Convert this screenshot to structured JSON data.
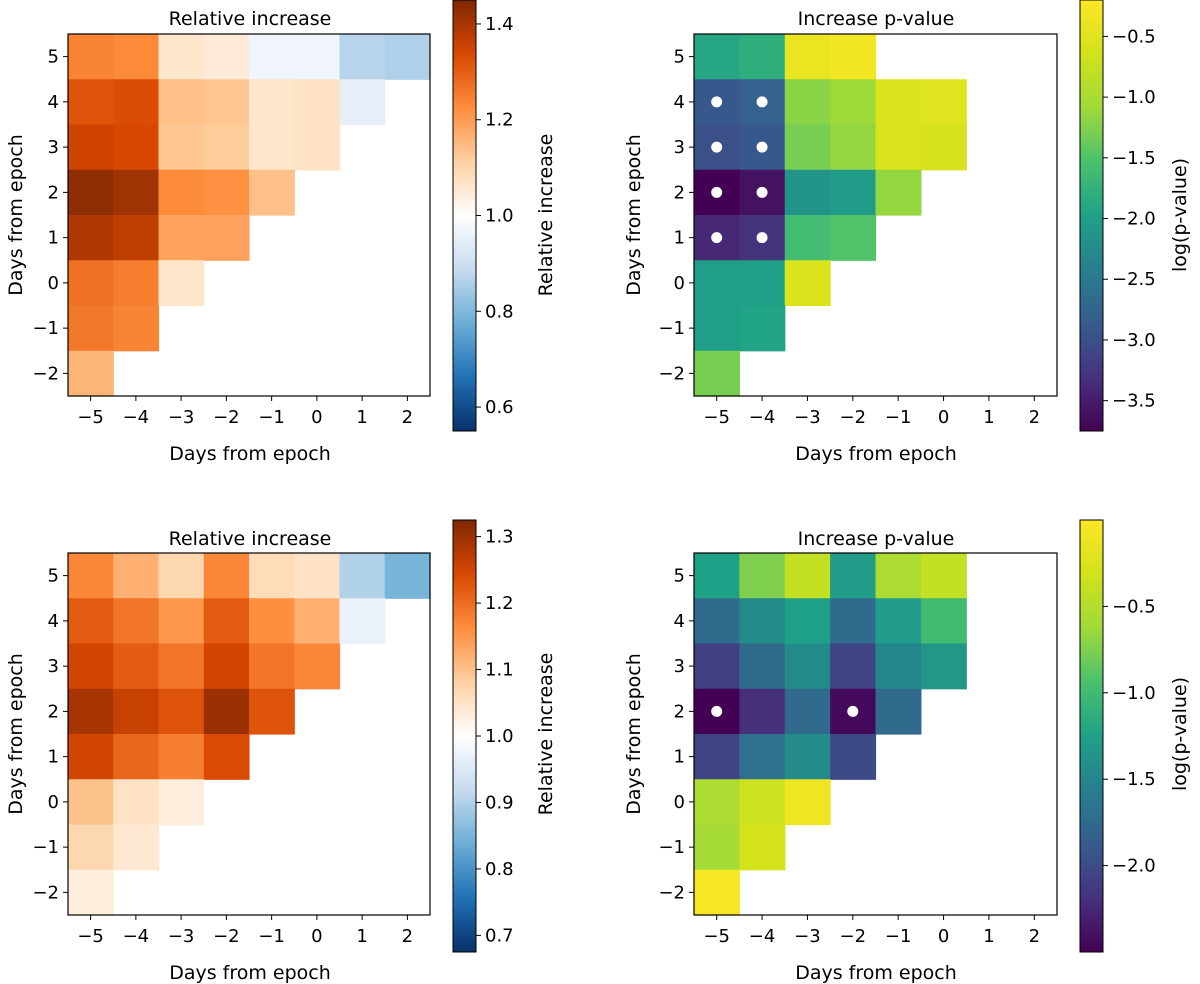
{
  "figure": {
    "panels": [
      {
        "id": "A",
        "title": "Relative increase",
        "xlabel": "Days from epoch",
        "ylabel": "Days from epoch",
        "colorbar_label": "Relative increase"
      },
      {
        "id": "B",
        "title": "Increase p-value",
        "xlabel": "Days from epoch",
        "ylabel": "Days from epoch",
        "colorbar_label": "log(p-value)"
      },
      {
        "id": "C",
        "title": "Relative increase",
        "xlabel": "Days from epoch",
        "ylabel": "Days from epoch",
        "colorbar_label": "Relative increase"
      },
      {
        "id": "D",
        "title": "Increase p-value",
        "xlabel": "Days from epoch",
        "ylabel": "Days from epoch",
        "colorbar_label": "log(p-value)"
      }
    ]
  },
  "chart_data": [
    {
      "type": "heatmap",
      "title": "Relative increase",
      "xlabel": "Days from epoch",
      "ylabel": "Days from epoch",
      "x": [
        -5,
        -4,
        -3,
        -2,
        -1,
        0,
        1,
        2
      ],
      "y": [
        5,
        4,
        3,
        2,
        1,
        0,
        -1,
        -2
      ],
      "z": [
        [
          1.24,
          1.23,
          1.06,
          1.05,
          0.97,
          0.97,
          0.87,
          0.86
        ],
        [
          1.32,
          1.33,
          1.14,
          1.13,
          1.06,
          1.07,
          0.95,
          null
        ],
        [
          1.35,
          1.34,
          1.13,
          1.12,
          1.06,
          1.07,
          null,
          null
        ],
        [
          1.43,
          1.41,
          1.23,
          1.22,
          1.14,
          null,
          null,
          null
        ],
        [
          1.39,
          1.37,
          1.19,
          1.19,
          null,
          null,
          null,
          null
        ],
        [
          1.27,
          1.25,
          1.06,
          null,
          null,
          null,
          null,
          null
        ],
        [
          1.26,
          1.24,
          null,
          null,
          null,
          null,
          null,
          null
        ],
        [
          1.16,
          null,
          null,
          null,
          null,
          null,
          null,
          null
        ]
      ],
      "colormap": "diverging blue-white-orange",
      "colorbar_label": "Relative increase",
      "colorbar_range": [
        0.55,
        1.45
      ],
      "colorbar_ticks": [
        0.6,
        0.8,
        1.0,
        1.2,
        1.4
      ],
      "significant_markers": []
    },
    {
      "type": "heatmap",
      "title": "Increase p-value",
      "xlabel": "Days from epoch",
      "ylabel": "Days from epoch",
      "x": [
        -5,
        -4,
        -3,
        -2,
        -1,
        0,
        1,
        2
      ],
      "y": [
        5,
        4,
        3,
        2,
        1,
        0,
        -1,
        -2
      ],
      "z": [
        [
          -1.9,
          -1.8,
          -0.4,
          -0.3,
          null,
          null,
          null,
          null
        ],
        [
          -2.9,
          -2.8,
          -1.2,
          -1.1,
          -0.55,
          -0.5,
          null,
          null
        ],
        [
          -3.0,
          -2.9,
          -1.3,
          -1.15,
          -0.55,
          -0.6,
          null,
          null
        ],
        [
          -3.75,
          -3.6,
          -2.15,
          -2.05,
          -1.15,
          null,
          null,
          null
        ],
        [
          -3.4,
          -3.3,
          -1.6,
          -1.5,
          null,
          null,
          null,
          null
        ],
        [
          -2.0,
          -2.0,
          -0.55,
          null,
          null,
          null,
          null,
          null
        ],
        [
          -2.0,
          -1.95,
          null,
          null,
          null,
          null,
          null,
          null
        ],
        [
          -1.3,
          null,
          null,
          null,
          null,
          null,
          null,
          null
        ]
      ],
      "colormap": "viridis",
      "colorbar_label": "log(p-value)",
      "colorbar_range": [
        -3.75,
        -0.2
      ],
      "colorbar_ticks": [
        -3.5,
        -3.0,
        -2.5,
        -2.0,
        -1.5,
        -1.0,
        -0.5
      ],
      "significant_markers": [
        [
          -5,
          4
        ],
        [
          -4,
          4
        ],
        [
          -5,
          3
        ],
        [
          -4,
          3
        ],
        [
          -5,
          2
        ],
        [
          -4,
          2
        ],
        [
          -5,
          1
        ],
        [
          -4,
          1
        ]
      ]
    },
    {
      "type": "heatmap",
      "title": "Relative increase",
      "xlabel": "Days from epoch",
      "ylabel": "Days from epoch",
      "x": [
        -5,
        -4,
        -3,
        -2,
        -1,
        0,
        1,
        2
      ],
      "y": [
        5,
        4,
        3,
        2,
        1,
        0,
        -1,
        -2
      ],
      "z": [
        [
          1.17,
          1.12,
          1.07,
          1.17,
          1.06,
          1.05,
          0.9,
          0.85
        ],
        [
          1.22,
          1.19,
          1.15,
          1.22,
          1.16,
          1.12,
          0.97,
          null
        ],
        [
          1.25,
          1.22,
          1.19,
          1.25,
          1.19,
          1.17,
          null,
          null
        ],
        [
          1.29,
          1.26,
          1.23,
          1.3,
          1.23,
          null,
          null,
          null
        ],
        [
          1.25,
          1.21,
          1.18,
          1.24,
          null,
          null,
          null,
          null
        ],
        [
          1.1,
          1.05,
          1.03,
          null,
          null,
          null,
          null,
          null
        ],
        [
          1.07,
          1.04,
          null,
          null,
          null,
          null,
          null,
          null
        ],
        [
          1.03,
          null,
          null,
          null,
          null,
          null,
          null,
          null
        ]
      ],
      "colormap": "diverging blue-white-orange",
      "colorbar_label": "Relative increase",
      "colorbar_range": [
        0.675,
        1.325
      ],
      "colorbar_ticks": [
        0.7,
        0.8,
        0.9,
        1.0,
        1.1,
        1.2,
        1.3
      ],
      "significant_markers": []
    },
    {
      "type": "heatmap",
      "title": "Increase p-value",
      "xlabel": "Days from epoch",
      "ylabel": "Days from epoch",
      "x": [
        -5,
        -4,
        -3,
        -2,
        -1,
        0,
        1,
        2
      ],
      "y": [
        5,
        4,
        3,
        2,
        1,
        0,
        -1,
        -2
      ],
      "z": [
        [
          -1.25,
          -0.75,
          -0.4,
          -1.3,
          -0.55,
          -0.4,
          null,
          null
        ],
        [
          -1.75,
          -1.45,
          -1.25,
          -1.75,
          -1.3,
          -1.0,
          null,
          null
        ],
        [
          -2.1,
          -1.75,
          -1.45,
          -2.05,
          -1.5,
          -1.35,
          null,
          null
        ],
        [
          -2.5,
          -2.2,
          -1.75,
          -2.45,
          -1.75,
          null,
          null,
          null
        ],
        [
          -2.05,
          -1.7,
          -1.45,
          -2.0,
          null,
          null,
          null,
          null
        ],
        [
          -0.55,
          -0.35,
          -0.1,
          null,
          null,
          null,
          null,
          null
        ],
        [
          -0.6,
          -0.3,
          null,
          null,
          null,
          null,
          null,
          null
        ],
        [
          -0.05,
          null,
          null,
          null,
          null,
          null,
          null,
          null
        ]
      ],
      "colormap": "viridis",
      "colorbar_label": "log(p-value)",
      "colorbar_range": [
        -2.5,
        0.0
      ],
      "colorbar_ticks": [
        -2.0,
        -1.5,
        -1.0,
        -0.5
      ],
      "significant_markers": [
        [
          -5,
          2
        ],
        [
          -2,
          2
        ]
      ]
    }
  ]
}
